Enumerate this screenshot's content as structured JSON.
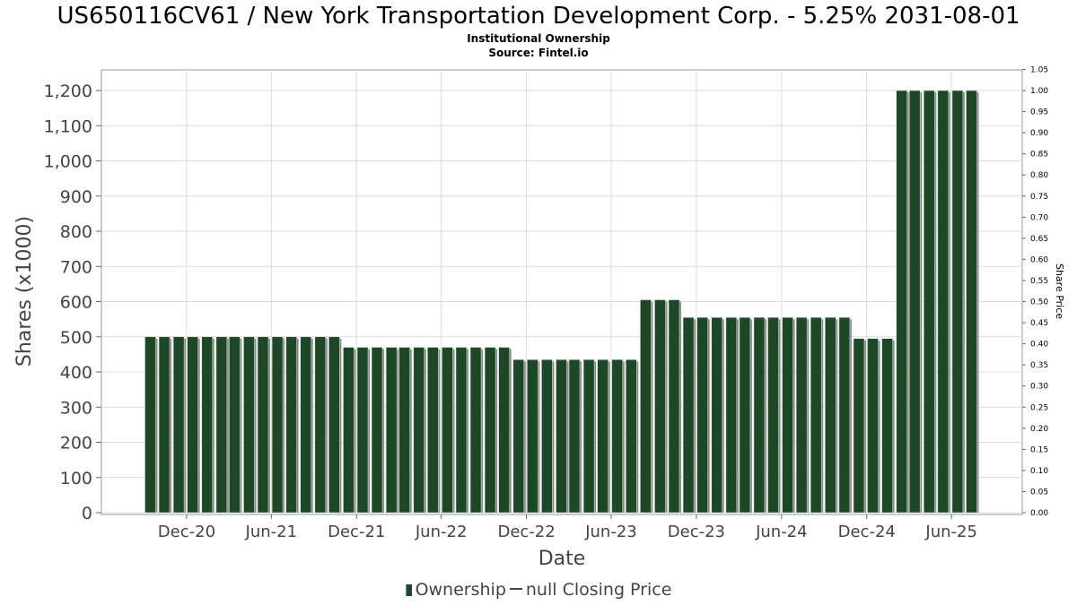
{
  "header": {
    "title": "US650116CV61 / New York Transportation Development Corp. - 5.25% 2031-08-01",
    "subtitle": "Institutional Ownership",
    "source": "Source: Fintel.io"
  },
  "legend": {
    "ownership_label": "Ownership",
    "price_label": "null Closing Price"
  },
  "colors": {
    "bar": "#1c4826",
    "bar_shadow": "#8a8a8a",
    "grid": "#dcdcdc",
    "plot_border": "#999999"
  },
  "chart_data": {
    "type": "bar",
    "xlabel": "Date",
    "ylabel": "Shares (x1000)",
    "y2label": "Share Price",
    "ylim": [
      0,
      1250
    ],
    "y2lim": [
      0,
      1.05
    ],
    "yticks": [
      0,
      100,
      200,
      300,
      400,
      500,
      600,
      700,
      800,
      900,
      1000,
      1100,
      1200
    ],
    "ytick_labels": [
      "0",
      "100",
      "200",
      "300",
      "400",
      "500",
      "600",
      "700",
      "800",
      "900",
      "1,000",
      "1,100",
      "1,200"
    ],
    "y2ticks": [
      0.0,
      0.05,
      0.1,
      0.15,
      0.2,
      0.25,
      0.3,
      0.35,
      0.4,
      0.45,
      0.5,
      0.55,
      0.6,
      0.65,
      0.7,
      0.75,
      0.8,
      0.85,
      0.9,
      0.95,
      1.0,
      1.05
    ],
    "y2tick_labels": [
      "0.00",
      "0.05",
      "0.10",
      "0.15",
      "0.20",
      "0.25",
      "0.30",
      "0.35",
      "0.40",
      "0.45",
      "0.50",
      "0.55",
      "0.60",
      "0.65",
      "0.70",
      "0.75",
      "0.80",
      "0.85",
      "0.90",
      "0.95",
      "1.00",
      "1.05"
    ],
    "xlim": [
      "2020-06-01",
      "2025-10-31"
    ],
    "xticks": [
      {
        "date": "2020-12-01",
        "label": "Dec-20"
      },
      {
        "date": "2021-06-01",
        "label": "Jun-21"
      },
      {
        "date": "2021-12-01",
        "label": "Dec-21"
      },
      {
        "date": "2022-06-01",
        "label": "Jun-22"
      },
      {
        "date": "2022-12-01",
        "label": "Dec-22"
      },
      {
        "date": "2023-06-01",
        "label": "Jun-23"
      },
      {
        "date": "2023-12-01",
        "label": "Dec-23"
      },
      {
        "date": "2024-06-01",
        "label": "Jun-24"
      },
      {
        "date": "2024-12-01",
        "label": "Dec-24"
      },
      {
        "date": "2025-06-01",
        "label": "Jun-25"
      }
    ],
    "grid": true,
    "legend_position": "bottom",
    "series": [
      {
        "name": "Ownership",
        "type": "bar",
        "x": [
          "2020-09",
          "2020-10",
          "2020-11",
          "2020-12",
          "2021-01",
          "2021-02",
          "2021-03",
          "2021-04",
          "2021-05",
          "2021-06",
          "2021-07",
          "2021-08",
          "2021-09",
          "2021-10",
          "2021-11",
          "2021-12",
          "2022-01",
          "2022-02",
          "2022-03",
          "2022-04",
          "2022-05",
          "2022-06",
          "2022-07",
          "2022-08",
          "2022-09",
          "2022-10",
          "2022-11",
          "2022-12",
          "2023-01",
          "2023-02",
          "2023-03",
          "2023-04",
          "2023-05",
          "2023-06",
          "2023-07",
          "2023-08",
          "2023-09",
          "2023-10",
          "2023-11",
          "2023-12",
          "2024-01",
          "2024-02",
          "2024-03",
          "2024-04",
          "2024-05",
          "2024-06",
          "2024-07",
          "2024-08",
          "2024-09",
          "2024-10",
          "2024-11",
          "2024-12",
          "2025-01",
          "2025-02",
          "2025-03",
          "2025-04",
          "2025-05",
          "2025-06",
          "2025-07"
        ],
        "values": [
          500,
          500,
          500,
          500,
          500,
          500,
          500,
          500,
          500,
          500,
          500,
          500,
          500,
          500,
          470,
          470,
          470,
          470,
          470,
          470,
          470,
          470,
          470,
          470,
          470,
          470,
          435,
          435,
          435,
          435,
          435,
          435,
          435,
          435,
          435,
          605,
          605,
          605,
          555,
          555,
          555,
          555,
          555,
          555,
          555,
          555,
          555,
          555,
          555,
          555,
          495,
          495,
          495,
          1200,
          1200,
          1200,
          1200,
          1200,
          1200
        ]
      },
      {
        "name": "null Closing Price",
        "type": "line",
        "x": [],
        "values": []
      }
    ]
  }
}
